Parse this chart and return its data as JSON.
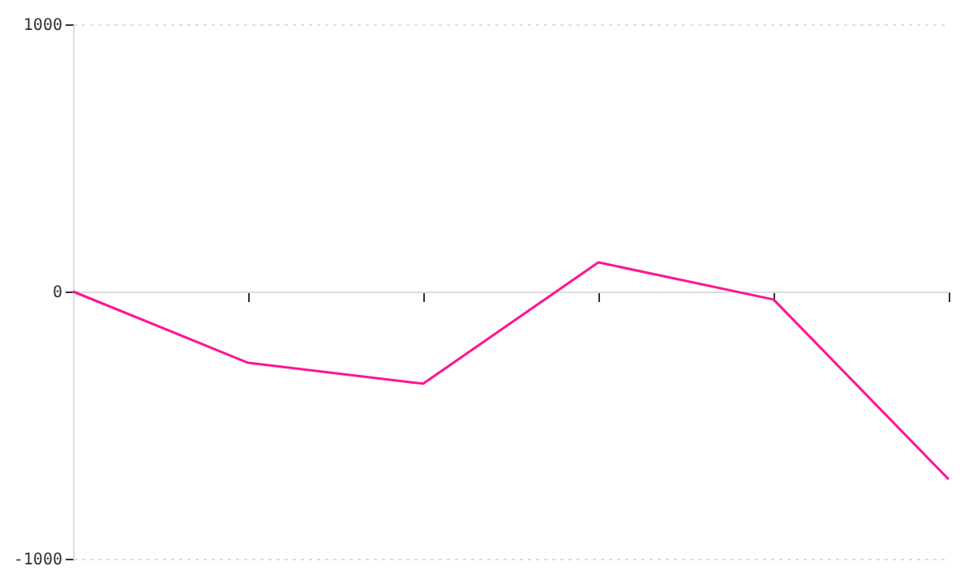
{
  "chart_data": {
    "type": "line",
    "categories": [
      null,
      null,
      null,
      null,
      null,
      null
    ],
    "series": [
      {
        "color": "#ff1493",
        "values": [
          0,
          -267,
          -345,
          109,
          -30,
          -703
        ]
      }
    ],
    "ylim": [
      -1000,
      1000
    ],
    "yticks": [
      -1000,
      0,
      1000
    ],
    "grid": "y",
    "tick_labels": "y",
    "marker": "none",
    "line_style": "solid"
  }
}
